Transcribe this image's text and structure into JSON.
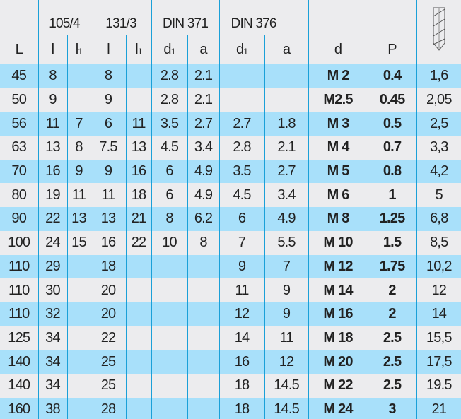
{
  "groups": [
    "105/4",
    "131/3",
    "DIN 371",
    "DIN 376"
  ],
  "subheaders": {
    "L": "L",
    "l": "l",
    "l1_base": "l",
    "l1_sub": "1",
    "d1_base": "d",
    "d1_sub": "1",
    "a": "a",
    "d": "d",
    "P": "P"
  },
  "drill_icon": "tap-drill-icon",
  "colors": {
    "row_blue": "#a8e0fa",
    "row_gray": "#ececee",
    "lines": "#1aa0d8"
  },
  "rows": [
    [
      "45",
      "8",
      "",
      "8",
      "",
      "2.8",
      "2.1",
      "",
      "",
      "M 2",
      "0.4",
      "1,6"
    ],
    [
      "50",
      "9",
      "",
      "9",
      "",
      "2.8",
      "2.1",
      "",
      "",
      "M2.5",
      "0.45",
      "2,05"
    ],
    [
      "56",
      "11",
      "7",
      "6",
      "11",
      "3.5",
      "2.7",
      "2.7",
      "1.8",
      "M 3",
      "0.5",
      "2,5"
    ],
    [
      "63",
      "13",
      "8",
      "7.5",
      "13",
      "4.5",
      "3.4",
      "2.8",
      "2.1",
      "M 4",
      "0.7",
      "3,3"
    ],
    [
      "70",
      "16",
      "9",
      "9",
      "16",
      "6",
      "4.9",
      "3.5",
      "2.7",
      "M 5",
      "0.8",
      "4,2"
    ],
    [
      "80",
      "19",
      "11",
      "11",
      "18",
      "6",
      "4.9",
      "4.5",
      "3.4",
      "M 6",
      "1",
      "5"
    ],
    [
      "90",
      "22",
      "13",
      "13",
      "21",
      "8",
      "6.2",
      "6",
      "4.9",
      "M 8",
      "1.25",
      "6,8"
    ],
    [
      "100",
      "24",
      "15",
      "16",
      "22",
      "10",
      "8",
      "7",
      "5.5",
      "M 10",
      "1.5",
      "8,5"
    ],
    [
      "110",
      "29",
      "",
      "18",
      "",
      "",
      "",
      "9",
      "7",
      "M 12",
      "1.75",
      "10,2"
    ],
    [
      "110",
      "30",
      "",
      "20",
      "",
      "",
      "",
      "11",
      "9",
      "M 14",
      "2",
      "12"
    ],
    [
      "110",
      "32",
      "",
      "20",
      "",
      "",
      "",
      "12",
      "9",
      "M 16",
      "2",
      "14"
    ],
    [
      "125",
      "34",
      "",
      "22",
      "",
      "",
      "",
      "14",
      "11",
      "M 18",
      "2.5",
      "15,5"
    ],
    [
      "140",
      "34",
      "",
      "25",
      "",
      "",
      "",
      "16",
      "12",
      "M 20",
      "2.5",
      "17,5"
    ],
    [
      "140",
      "34",
      "",
      "25",
      "",
      "",
      "",
      "18",
      "14.5",
      "M 22",
      "2.5",
      "19.5"
    ],
    [
      "160",
      "38",
      "",
      "28",
      "",
      "",
      "",
      "18",
      "14.5",
      "M 24",
      "3",
      "21"
    ]
  ]
}
